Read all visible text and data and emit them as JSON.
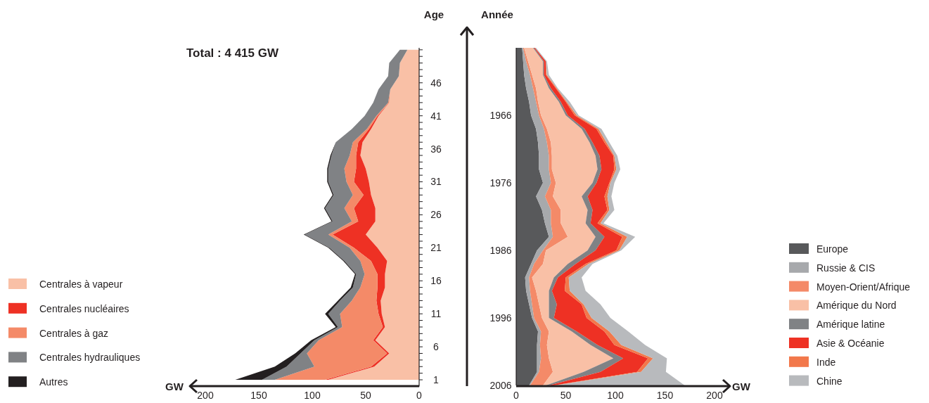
{
  "chart_data": [
    {
      "type": "area",
      "stacked": true,
      "orientation": "horizontal",
      "title": "Total : 4 415 GW",
      "xlabel": "GW",
      "ylabel": "Age",
      "legend": "bottom left",
      "x": [
        1,
        3,
        5,
        7,
        9,
        11,
        13,
        15,
        17,
        19,
        21,
        23,
        25,
        27,
        29,
        31,
        33,
        35,
        37,
        39,
        41,
        43,
        45,
        47,
        49,
        51
      ],
      "xlim": [
        200,
        0
      ],
      "xticks": [
        200,
        150,
        100,
        50,
        0
      ],
      "ylim": [
        0,
        51.3
      ],
      "yticks": [
        1,
        {
          "value": 2,
          "label": null
        },
        {
          "value": 3,
          "label": null
        },
        {
          "value": 4,
          "label": null
        },
        {
          "value": 5,
          "label": null
        },
        6,
        {
          "value": 7,
          "label": null
        },
        {
          "value": 8,
          "label": null
        },
        {
          "value": 9,
          "label": null
        },
        {
          "value": 10,
          "label": null
        },
        11,
        {
          "value": 12,
          "label": null
        },
        {
          "value": 13,
          "label": null
        },
        {
          "value": 14,
          "label": null
        },
        {
          "value": 15,
          "label": null
        },
        16,
        {
          "value": 17,
          "label": null
        },
        {
          "value": 18,
          "label": null
        },
        {
          "value": 19,
          "label": null
        },
        {
          "value": 20,
          "label": null
        },
        21,
        {
          "value": 22,
          "label": null
        },
        {
          "value": 23,
          "label": null
        },
        {
          "value": 24,
          "label": null
        },
        {
          "value": 25,
          "label": null
        },
        26,
        {
          "value": 27,
          "label": null
        },
        {
          "value": 28,
          "label": null
        },
        {
          "value": 29,
          "label": null
        },
        {
          "value": 30,
          "label": null
        },
        31,
        {
          "value": 32,
          "label": null
        },
        {
          "value": 33,
          "label": null
        },
        {
          "value": 34,
          "label": null
        },
        {
          "value": 35,
          "label": null
        },
        36,
        {
          "value": 37,
          "label": null
        },
        {
          "value": 38,
          "label": null
        },
        {
          "value": 39,
          "label": null
        },
        {
          "value": 40,
          "label": null
        },
        41,
        {
          "value": 42,
          "label": null
        },
        {
          "value": 43,
          "label": null
        },
        {
          "value": 44,
          "label": null
        },
        {
          "value": 45,
          "label": null
        },
        46,
        {
          "value": 47,
          "label": null
        },
        {
          "value": 48,
          "label": null
        },
        {
          "value": 49,
          "label": null
        },
        {
          "value": 50,
          "label": null
        },
        {
          "value": 51,
          "label": null
        }
      ],
      "series": [
        {
          "name": "Centrales à vapeur",
          "color": "#f9c0a6",
          "values": [
            85,
            42,
            28,
            41,
            32,
            35,
            36,
            32,
            32,
            30,
            39,
            50,
            41,
            41,
            45,
            47,
            50,
            55,
            53,
            45,
            38,
            28,
            27,
            19,
            18,
            11
          ]
        },
        {
          "name": "Centrales nucléaires",
          "color": "#ee3124",
          "values": [
            3,
            3,
            2,
            2,
            2,
            3,
            4,
            7,
            7,
            15,
            22,
            31,
            16,
            20,
            7,
            14,
            9,
            4,
            4,
            2,
            1,
            0,
            0,
            0,
            0,
            0
          ]
        },
        {
          "name": "Centrales à gaz",
          "color": "#f48a68",
          "values": [
            47,
            53,
            75,
            51,
            38,
            36,
            23,
            16,
            12,
            10,
            4,
            4,
            6,
            9,
            10,
            7,
            11,
            6,
            5,
            2,
            1,
            1,
            0,
            0,
            0,
            0
          ]
        },
        {
          "name": "Centrales hydrauliques",
          "color": "#808285",
          "values": [
            12,
            26,
            6,
            4,
            4,
            11,
            11,
            7,
            8,
            15,
            19,
            22,
            18,
            18,
            18,
            17,
            15,
            17,
            16,
            14,
            11,
            14,
            11,
            10,
            10,
            7
          ]
        },
        {
          "name": "Autres",
          "color": "#231f20",
          "values": [
            25,
            11,
            5,
            3,
            2,
            3,
            2,
            2,
            1,
            1,
            1,
            1,
            1,
            1,
            1,
            1,
            1,
            1,
            0,
            0,
            0,
            0,
            0,
            0,
            0,
            0
          ]
        }
      ]
    },
    {
      "type": "area",
      "stacked": true,
      "orientation": "horizontal",
      "xlabel": "GW",
      "ylabel": "Année",
      "legend": "bottom right",
      "x": [
        2006,
        2004,
        2002,
        2000,
        1998,
        1996,
        1994,
        1992,
        1990,
        1988,
        1986,
        1984,
        1982,
        1980,
        1978,
        1976,
        1974,
        1972,
        1970,
        1968,
        1966,
        1964,
        1962,
        1960,
        1958,
        1956
      ],
      "xlim": [
        0,
        200
      ],
      "xticks": [
        0,
        50,
        100,
        150,
        200
      ],
      "ylim": [
        2006,
        1956
      ],
      "yticks": [
        1966,
        1976,
        1986,
        1996,
        2006
      ],
      "series": [
        {
          "name": "Europe",
          "color": "#58595b",
          "values": [
            13,
            21,
            21,
            21,
            22,
            16,
            13,
            10,
            9,
            15,
            21,
            33,
            29,
            26,
            20,
            27,
            23,
            23,
            22,
            20,
            15,
            13,
            10,
            8,
            7,
            6
          ]
        },
        {
          "name": "Russie & CIS",
          "color": "#a7a9ac",
          "values": [
            1,
            2,
            4,
            3,
            3,
            2,
            3,
            4,
            4,
            3,
            6,
            4,
            6,
            9,
            9,
            8,
            10,
            10,
            9,
            8,
            8,
            7,
            7,
            6,
            3,
            1
          ]
        },
        {
          "name": "Moyen-Orient/Afrique",
          "color": "#f48a68",
          "values": [
            13,
            14,
            8,
            7,
            8,
            8,
            7,
            6,
            3,
            9,
            3,
            15,
            10,
            10,
            8,
            5,
            3,
            3,
            4,
            3,
            2,
            2,
            3,
            2,
            2,
            1
          ]
        },
        {
          "name": "Amérique du Nord",
          "color": "#f9c0a6",
          "values": [
            3,
            31,
            65,
            44,
            23,
            7,
            10,
            13,
            22,
            25,
            42,
            28,
            25,
            27,
            29,
            37,
            46,
            44,
            39,
            35,
            25,
            21,
            13,
            11,
            15,
            9
          ]
        },
        {
          "name": "Amérique latine",
          "color": "#808285",
          "values": [
            3,
            17,
            10,
            7,
            5,
            5,
            8,
            3,
            4,
            8,
            8,
            9,
            5,
            5,
            6,
            4,
            4,
            4,
            3,
            3,
            2,
            2,
            2,
            1,
            1,
            1
          ]
        },
        {
          "name": "Asie & Océanie",
          "color": "#ee3124",
          "values": [
            5,
            37,
            25,
            17,
            28,
            33,
            25,
            13,
            8,
            10,
            21,
            18,
            7,
            15,
            17,
            13,
            13,
            14,
            12,
            12,
            7,
            5,
            5,
            2,
            2,
            1
          ]
        },
        {
          "name": "Inde",
          "color": "#f2784b",
          "values": [
            2,
            4,
            5,
            7,
            5,
            5,
            2,
            5,
            3,
            3,
            3,
            5,
            3,
            2,
            3,
            1,
            2,
            1,
            2,
            2,
            2,
            1,
            1,
            1,
            0,
            0
          ]
        },
        {
          "name": "Chine",
          "color": "#b8babd",
          "values": [
            130,
            25,
            14,
            24,
            19,
            19,
            17,
            16,
            13,
            4,
            2,
            8,
            3,
            5,
            4,
            4,
            4,
            3,
            3,
            3,
            2,
            3,
            1,
            2,
            1,
            1
          ]
        }
      ]
    }
  ]
}
